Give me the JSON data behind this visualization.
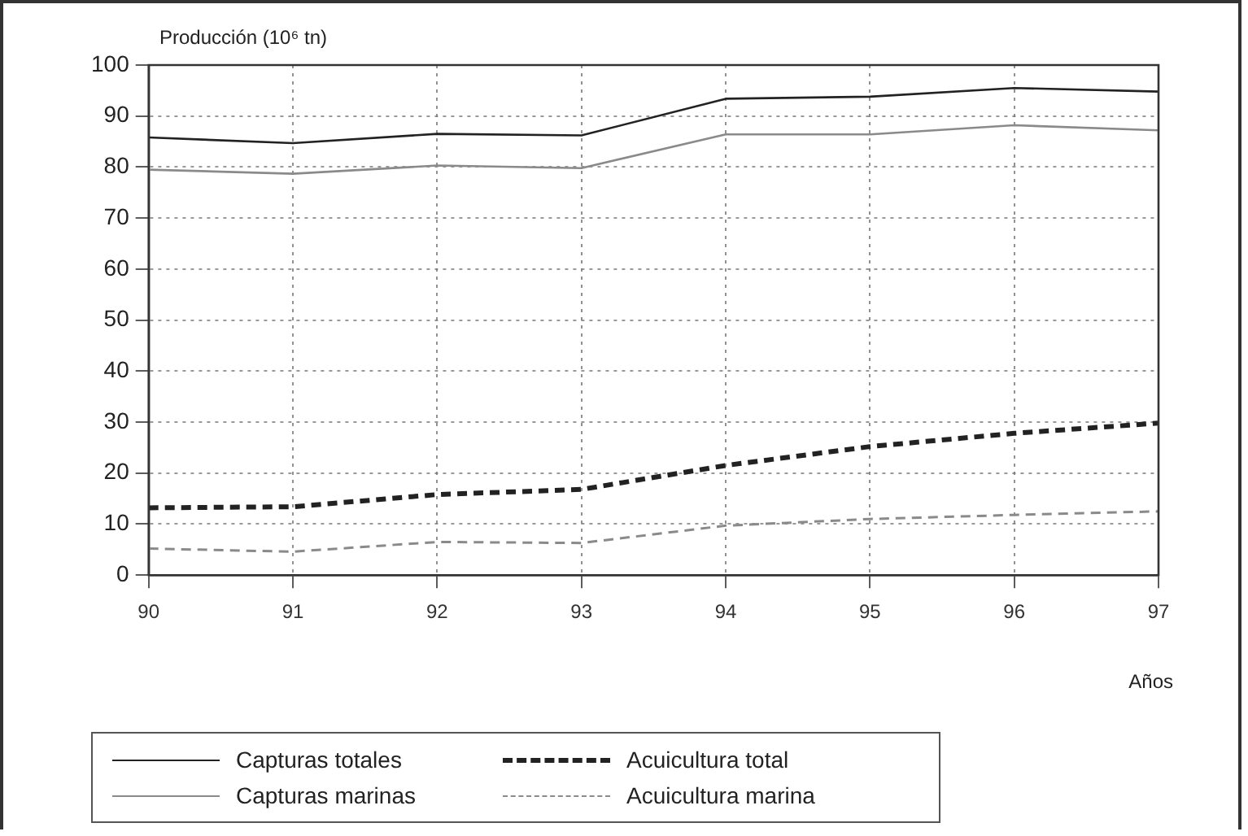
{
  "chart_data": {
    "type": "line",
    "ylabel": "Producción (10⁶ tn)",
    "xlabel": "Años",
    "x": [
      90,
      91,
      92,
      93,
      94,
      95,
      96,
      97
    ],
    "xlim": [
      90,
      97
    ],
    "xticks": [
      90,
      91,
      92,
      93,
      94,
      95,
      96,
      97
    ],
    "ylim": [
      0,
      100
    ],
    "yticks": [
      0,
      10,
      20,
      30,
      40,
      50,
      60,
      70,
      80,
      90,
      100
    ],
    "grid": true,
    "legend": "bottom left",
    "marker": "none",
    "series": [
      {
        "name": "Capturas totales",
        "color": "#222222",
        "line_style": "solid",
        "values": [
          85.8,
          84.7,
          86.5,
          86.2,
          93.4,
          93.8,
          95.5,
          94.8
        ]
      },
      {
        "name": "Capturas marinas",
        "color": "#8a8a8a",
        "line_style": "solid",
        "values": [
          79.5,
          78.7,
          80.3,
          79.8,
          86.4,
          86.4,
          88.2,
          87.2
        ]
      },
      {
        "name": "Acuicultura total",
        "color": "#222222",
        "line_style": "dashed",
        "values": [
          13.2,
          13.4,
          15.8,
          16.8,
          21.5,
          25.2,
          27.8,
          29.8
        ]
      },
      {
        "name": "Acuicultura marina",
        "color": "#8a8a8a",
        "line_style": "dashed",
        "values": [
          5.2,
          4.6,
          6.5,
          6.3,
          9.7,
          11.0,
          11.8,
          12.5
        ]
      }
    ]
  }
}
